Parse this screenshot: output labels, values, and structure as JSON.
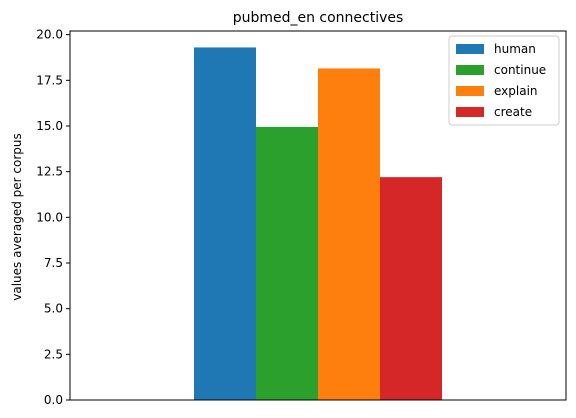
{
  "chart_data": {
    "type": "bar",
    "title": "pubmed_en connectives",
    "xlabel": "",
    "ylabel": "values averaged per corpus",
    "ylim": [
      0,
      20.2
    ],
    "yticks": [
      "0.0",
      "2.5",
      "5.0",
      "7.5",
      "10.0",
      "12.5",
      "15.0",
      "17.5",
      "20.0"
    ],
    "categories": [
      ""
    ],
    "series": [
      {
        "name": "human",
        "values": [
          19.3
        ],
        "color": "#1f77b4"
      },
      {
        "name": "continue",
        "values": [
          14.95
        ],
        "color": "#2ca02c"
      },
      {
        "name": "explain",
        "values": [
          18.15
        ],
        "color": "#ff7f0e"
      },
      {
        "name": "create",
        "values": [
          12.2
        ],
        "color": "#d62728"
      }
    ],
    "legend_position": "top-right",
    "grid": false
  }
}
